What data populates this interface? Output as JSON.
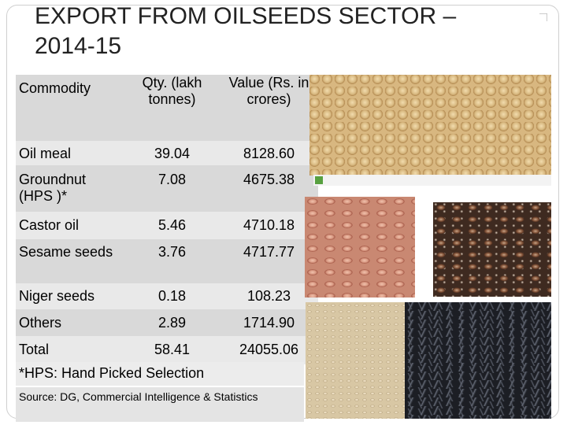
{
  "title": "EXPORT FROM OILSEEDS SECTOR – 2014-15",
  "table": {
    "headers": [
      "Commodity",
      "Qty. (lakh tonnes)",
      "Value (Rs. in crores)"
    ],
    "rows": [
      {
        "commodity": "Oil meal",
        "qty": "39.04",
        "value": "8128.60"
      },
      {
        "commodity": "Groundnut (HPS )*",
        "qty": "7.08",
        "value": "4675.38"
      },
      {
        "commodity": "Castor oil",
        "qty": "5.46",
        "value": "4710.18"
      },
      {
        "commodity": "Sesame seeds",
        "qty": "3.76",
        "value": "4717.77"
      },
      {
        "commodity": "Niger seeds",
        "qty": "0.18",
        "value": "108.23"
      },
      {
        "commodity": "Others",
        "qty": "2.89",
        "value": "1714.90"
      },
      {
        "commodity": "Total",
        "qty": "58.41",
        "value": "24055.06"
      }
    ]
  },
  "footnote": "*HPS: Hand Picked Selection",
  "source": "Source:  DG, Commercial Intelligence & Statistics",
  "images": [
    "soybean-seeds",
    "groundnut-kernels",
    "castor-seeds",
    "sesame-seeds",
    "niger-seeds"
  ]
}
